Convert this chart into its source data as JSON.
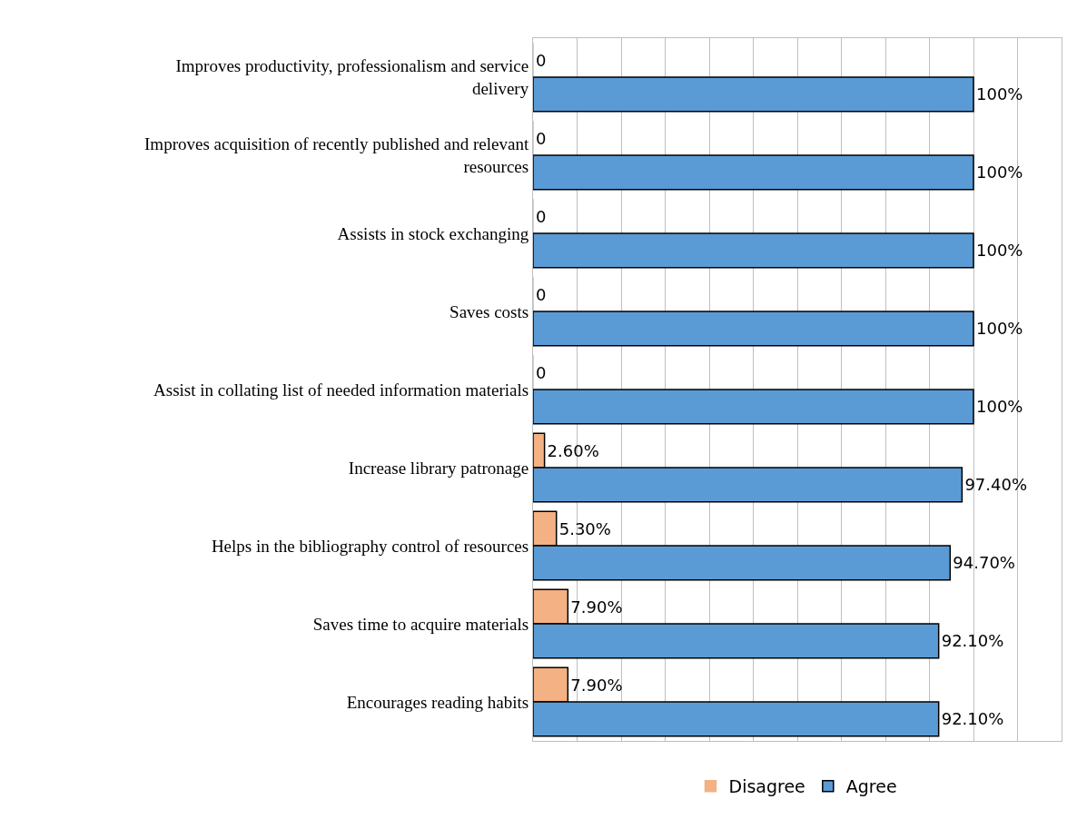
{
  "chart_data": {
    "type": "bar",
    "orientation": "horizontal",
    "categories": [
      "Improves productivity, professionalism and service delivery",
      "Improves acquisition of recently published and relevant resources",
      "Assists in stock exchanging",
      "Saves costs",
      "Assist in collating list of needed information materials",
      "Increase library patronage",
      "Helps in the bibliography control of resources",
      "Saves time to acquire materials",
      "Encourages reading habits"
    ],
    "series": [
      {
        "name": "Disagree",
        "color": "#f4b183",
        "values": [
          0,
          0,
          0,
          0,
          0,
          2.6,
          5.3,
          7.9,
          7.9
        ],
        "value_labels": [
          "0",
          "0",
          "0",
          "0",
          "0",
          "2.60%",
          "5.30%",
          "7.90%",
          "7.90%"
        ]
      },
      {
        "name": "Agree",
        "color": "#5b9bd5",
        "values": [
          100,
          100,
          100,
          100,
          100,
          97.4,
          94.7,
          92.1,
          92.1
        ],
        "value_labels": [
          "100%",
          "100%",
          "100%",
          "100%",
          "100%",
          "97.40%",
          "94.70%",
          "92.10%",
          "92.10%"
        ]
      }
    ],
    "xlim": [
      0,
      120
    ],
    "xticks": [
      {
        "value": 0,
        "label": null
      },
      {
        "value": 10,
        "label": null
      },
      {
        "value": 20,
        "label": null
      },
      {
        "value": 30,
        "label": null
      },
      {
        "value": 40,
        "label": null
      },
      {
        "value": 50,
        "label": null
      },
      {
        "value": 60,
        "label": null
      },
      {
        "value": 70,
        "label": null
      },
      {
        "value": 80,
        "label": null
      },
      {
        "value": 90,
        "label": null
      },
      {
        "value": 100,
        "label": null
      },
      {
        "value": 110,
        "label": null
      },
      {
        "value": 120,
        "label": null
      }
    ],
    "tick_labels": "y",
    "grid": "x",
    "legend": "bottom"
  }
}
